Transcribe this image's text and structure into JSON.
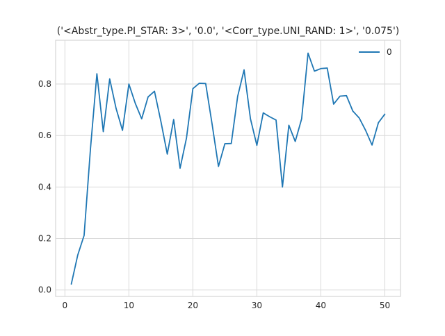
{
  "chart_data": {
    "type": "line",
    "title": "('<Abstr_type.PI_STAR: 3>', '0.0', '<Corr_type.UNI_RAND: 1>', '0.075')",
    "xlabel": "",
    "ylabel": "",
    "xlim": [
      -1.45,
      52.45
    ],
    "ylim": [
      -0.025,
      0.97
    ],
    "x_ticks": [
      0,
      10,
      20,
      30,
      40,
      50
    ],
    "y_ticks": [
      0.0,
      0.2,
      0.4,
      0.6,
      0.8
    ],
    "y_tick_labels": [
      "0.0",
      "0.2",
      "0.4",
      "0.6",
      "0.8"
    ],
    "grid": true,
    "legend_position": "top-right",
    "series": [
      {
        "name": "0",
        "color": "#1f77b4",
        "x": [
          1,
          2,
          3,
          4,
          5,
          6,
          7,
          8,
          9,
          10,
          11,
          12,
          13,
          14,
          15,
          16,
          17,
          18,
          19,
          20,
          21,
          22,
          23,
          24,
          25,
          26,
          27,
          28,
          29,
          30,
          31,
          32,
          33,
          34,
          35,
          36,
          37,
          38,
          39,
          40,
          41,
          42,
          43,
          44,
          45,
          46,
          47,
          48,
          49,
          50
        ],
        "values": [
          0.023,
          0.135,
          0.212,
          0.55,
          0.84,
          0.615,
          0.82,
          0.705,
          0.62,
          0.8,
          0.725,
          0.665,
          0.75,
          0.772,
          0.655,
          0.528,
          0.662,
          0.473,
          0.59,
          0.782,
          0.803,
          0.802,
          0.645,
          0.48,
          0.568,
          0.569,
          0.752,
          0.855,
          0.665,
          0.562,
          0.688,
          0.673,
          0.66,
          0.4,
          0.64,
          0.577,
          0.665,
          0.92,
          0.85,
          0.86,
          0.862,
          0.722,
          0.753,
          0.755,
          0.695,
          0.668,
          0.62,
          0.563,
          0.65,
          0.683
        ]
      }
    ]
  }
}
